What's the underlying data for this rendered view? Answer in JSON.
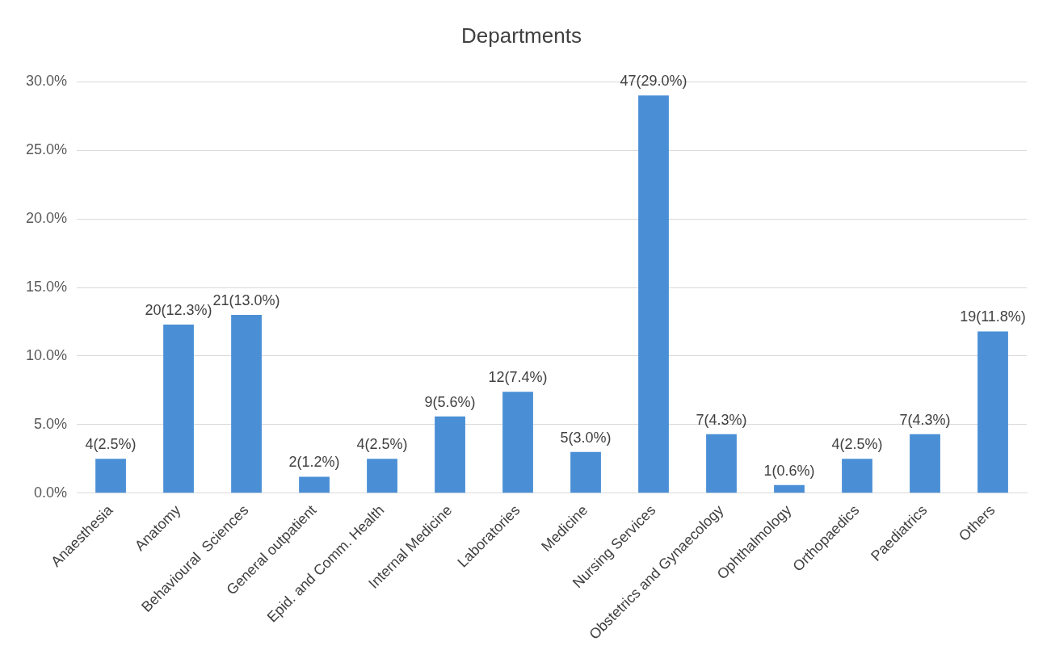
{
  "chart_data": {
    "type": "bar",
    "title": "Departments",
    "categories": [
      "Anaesthesia",
      "Anatomy",
      "Behavioural  Sciences",
      "General outpatient",
      "Epid. and Comm. Health",
      "Internal Medicine",
      "Laboratories",
      "Medicine",
      "Nursing Services",
      "Obstetrics and Gynaecology",
      "Ophthalmology",
      "Orthopaedics",
      "Paediatrics",
      "Others"
    ],
    "values": [
      2.5,
      12.3,
      13.0,
      1.2,
      2.5,
      5.6,
      7.4,
      3.0,
      29.0,
      4.3,
      0.6,
      2.5,
      4.3,
      11.8
    ],
    "value_labels": [
      "4(2.5%)",
      "20(12.3%)",
      "21(13.0%)",
      "2(1.2%)",
      "4(2.5%)",
      "9(5.6%)",
      "12(7.4%)",
      "5(3.0%)",
      "47(29.0%)",
      "7(4.3%)",
      "1(0.6%)",
      "4(2.5%)",
      "7(4.3%)",
      "19(11.8%)"
    ],
    "color": "#4a8fd6",
    "ylim": [
      0,
      30
    ],
    "yticks": [
      {
        "value": 0,
        "label": "0.0%"
      },
      {
        "value": 5,
        "label": "5.0%"
      },
      {
        "value": 10,
        "label": "10.0%"
      },
      {
        "value": 15,
        "label": "15.0%"
      },
      {
        "value": 20,
        "label": "20.0%"
      },
      {
        "value": 25,
        "label": "25.0%"
      },
      {
        "value": 30,
        "label": "30.0%"
      }
    ],
    "grid": "y",
    "legend": false
  }
}
